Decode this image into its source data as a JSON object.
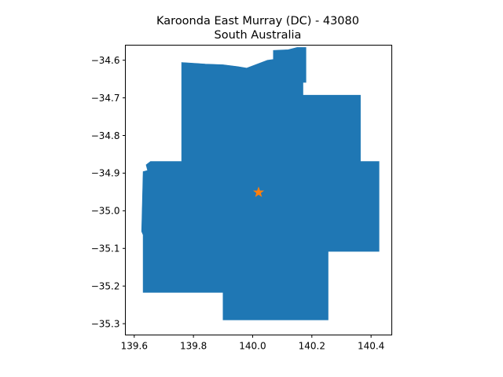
{
  "title": {
    "line1": "Karoonda East Murray (DC) - 43080",
    "line2": "South Australia"
  },
  "chart_data": {
    "type": "map",
    "title": "Karoonda East Murray (DC) - 43080\nSouth Australia",
    "xlabel": "",
    "ylabel": "",
    "xlim": [
      139.57,
      140.47
    ],
    "ylim": [
      -35.33,
      -34.56
    ],
    "grid": false,
    "x_ticks": [
      139.6,
      139.8,
      140.0,
      140.2,
      140.4
    ],
    "x_tick_labels": [
      "139.6",
      "139.8",
      "140.0",
      "140.2",
      "140.4"
    ],
    "y_ticks": [
      -34.6,
      -34.7,
      -34.8,
      -34.9,
      -35.0,
      -35.1,
      -35.2,
      -35.3
    ],
    "y_tick_labels": [
      "−34.6",
      "−34.7",
      "−34.8",
      "−34.9",
      "−35.0",
      "−35.1",
      "−35.2",
      "−35.3"
    ],
    "region_fill": "#1f77b4",
    "marker_color": "#ff7f0e",
    "region_boundary": [
      [
        139.76,
        -34.606
      ],
      [
        139.84,
        -34.61
      ],
      [
        139.9,
        -34.612
      ],
      [
        139.95,
        -34.617
      ],
      [
        139.98,
        -34.621
      ],
      [
        140.05,
        -34.6
      ],
      [
        140.07,
        -34.598
      ],
      [
        140.07,
        -34.574
      ],
      [
        140.12,
        -34.572
      ],
      [
        140.15,
        -34.566
      ],
      [
        140.18,
        -34.566
      ],
      [
        140.18,
        -34.659
      ],
      [
        140.17,
        -34.659
      ],
      [
        140.17,
        -34.693
      ],
      [
        140.364,
        -34.693
      ],
      [
        140.364,
        -34.869
      ],
      [
        140.427,
        -34.869
      ],
      [
        140.427,
        -35.108
      ],
      [
        140.255,
        -35.108
      ],
      [
        140.255,
        -35.29
      ],
      [
        139.9,
        -35.29
      ],
      [
        139.9,
        -35.217
      ],
      [
        139.63,
        -35.217
      ],
      [
        139.63,
        -35.064
      ],
      [
        139.625,
        -35.055
      ],
      [
        139.63,
        -34.896
      ],
      [
        139.645,
        -34.893
      ],
      [
        139.64,
        -34.878
      ],
      [
        139.655,
        -34.869
      ],
      [
        139.76,
        -34.869
      ]
    ],
    "marker": {
      "symbol": "star",
      "x": 140.02,
      "y": -34.951
    }
  }
}
